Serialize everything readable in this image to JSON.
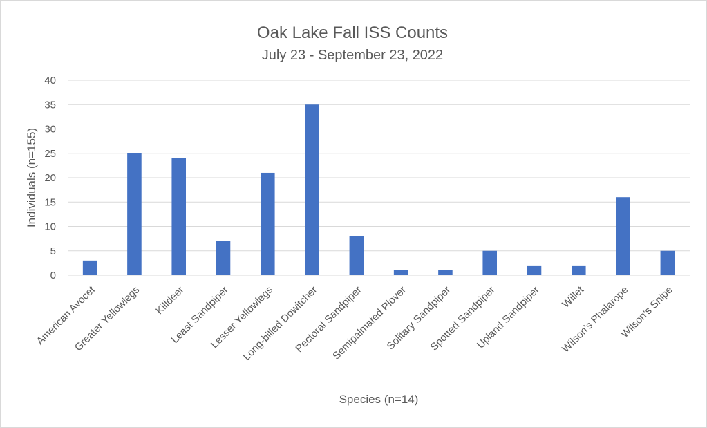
{
  "chart_data": {
    "type": "bar",
    "title": "Oak Lake Fall ISS Counts",
    "subtitle": "July 23 - September 23, 2022",
    "xlabel": "Species (n=14)",
    "ylabel": "Individuals (n=155)",
    "ylim": [
      0,
      40
    ],
    "yticks": [
      0,
      5,
      10,
      15,
      20,
      25,
      30,
      35,
      40
    ],
    "grid": true,
    "legend": "none",
    "color": "#4472c4",
    "categories": [
      "American Avocet",
      "Greater Yellowlegs",
      "Killdeer",
      "Least Sandpiper",
      "Lesser Yellowlegs",
      "Long-billed Dowitcher",
      "Pectoral Sandpiper",
      "Semipalmated Plover",
      "Solitary Sandpiper",
      "Spotted Sandpiper",
      "Upland Sandpiper",
      "Willet",
      "Wilson's Phalarope",
      "Wilson's Snipe"
    ],
    "values": [
      3,
      25,
      24,
      7,
      21,
      35,
      8,
      1,
      1,
      5,
      2,
      2,
      16,
      5
    ]
  }
}
